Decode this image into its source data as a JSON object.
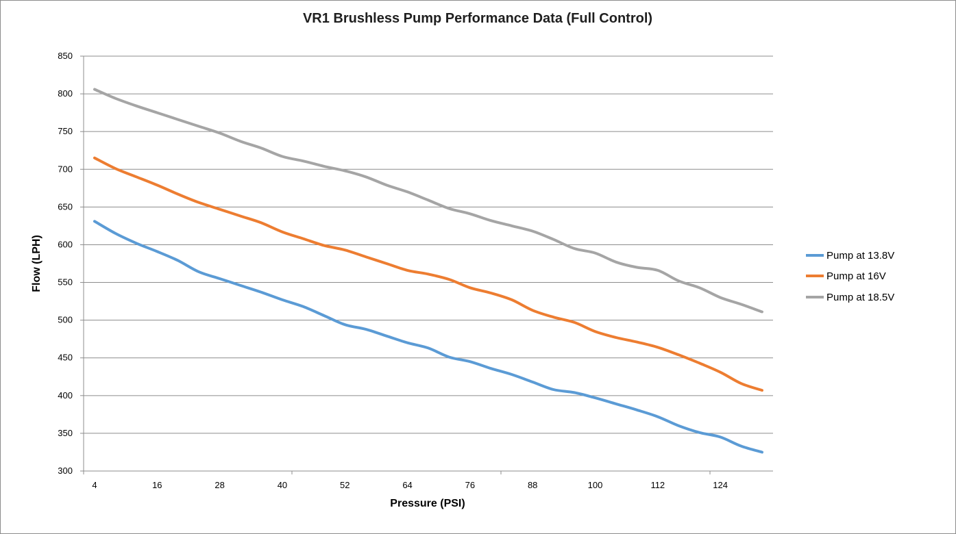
{
  "chart_data": {
    "type": "line",
    "title": "VR1 Brushless Pump Performance Data (Full Control)",
    "xlabel": "Pressure (PSI)",
    "ylabel": "Flow (LPH)",
    "ylim": [
      300,
      850
    ],
    "yticks": [
      300,
      350,
      400,
      450,
      500,
      550,
      600,
      650,
      700,
      750,
      800,
      850
    ],
    "xticks": [
      "4",
      "16",
      "28",
      "40",
      "52",
      "64",
      "76",
      "88",
      "100",
      "112",
      "124"
    ],
    "grid": "horizontal",
    "legend": "right",
    "x": [
      4,
      8,
      12,
      16,
      20,
      24,
      28,
      32,
      36,
      40,
      44,
      48,
      52,
      56,
      60,
      64,
      68,
      72,
      76,
      80,
      84,
      88,
      92,
      96,
      100,
      104,
      108,
      112,
      116,
      120,
      124,
      128,
      132
    ],
    "series": [
      {
        "name": "Pump at 13.8V",
        "color": "#5b9bd5",
        "values": [
          631,
          615,
          602,
          591,
          579,
          564,
          555,
          546,
          537,
          527,
          518,
          506,
          494,
          488,
          479,
          470,
          463,
          451,
          445,
          436,
          428,
          418,
          408,
          404,
          397,
          389,
          381,
          372,
          360,
          351,
          345,
          333,
          325
        ]
      },
      {
        "name": "Pump at 16V",
        "color": "#ed7d31",
        "values": [
          715,
          701,
          690,
          679,
          667,
          656,
          647,
          638,
          629,
          617,
          608,
          599,
          593,
          584,
          575,
          566,
          561,
          554,
          543,
          536,
          527,
          513,
          504,
          497,
          485,
          477,
          471,
          464,
          454,
          443,
          431,
          416,
          407
        ]
      },
      {
        "name": "Pump at 18.5V",
        "color": "#a5a5a5",
        "values": [
          806,
          794,
          784,
          775,
          766,
          757,
          748,
          737,
          728,
          717,
          711,
          704,
          698,
          690,
          679,
          670,
          659,
          648,
          641,
          632,
          625,
          618,
          607,
          595,
          589,
          577,
          570,
          566,
          552,
          543,
          530,
          521,
          511
        ]
      }
    ]
  }
}
